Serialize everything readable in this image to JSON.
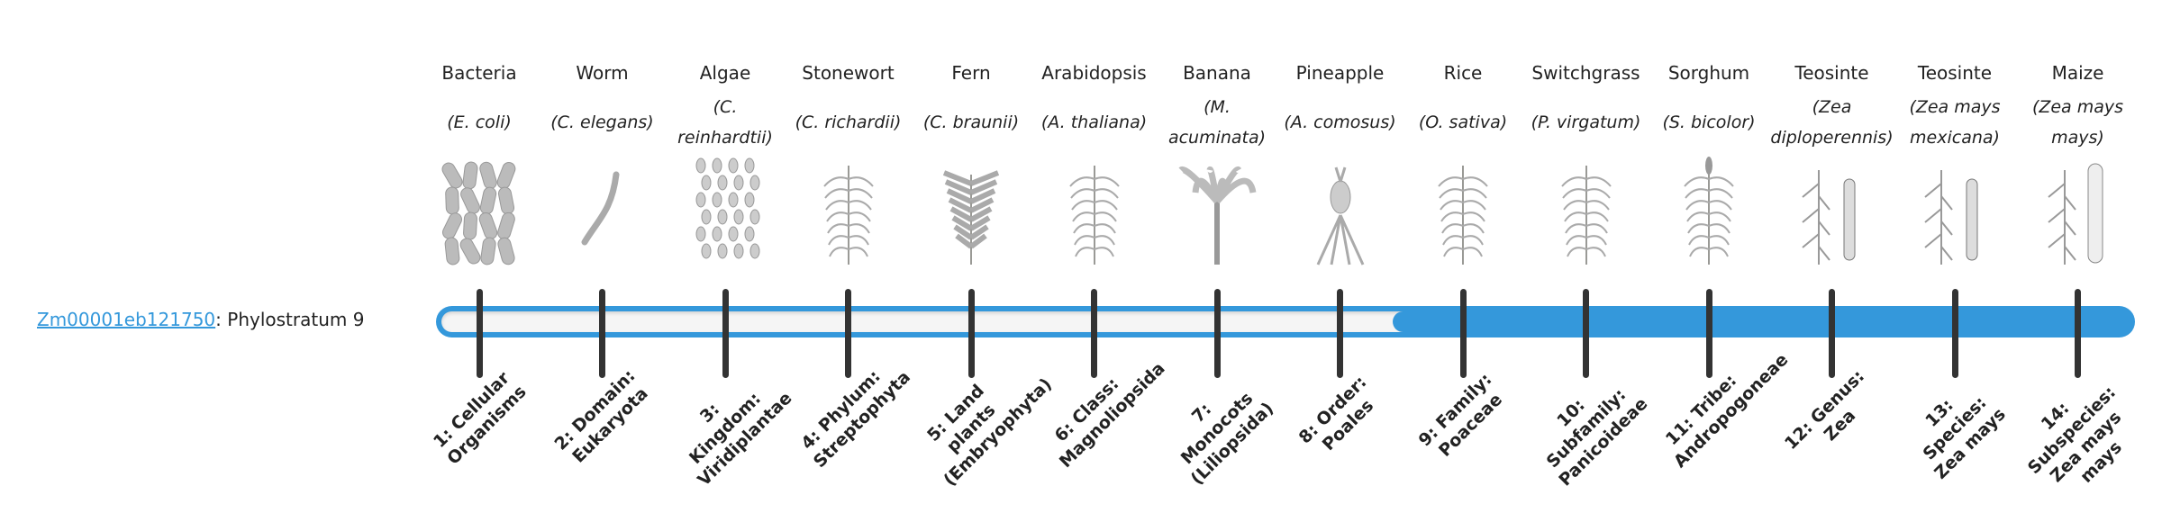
{
  "gene": {
    "id": "Zm00001eb121750",
    "suffix": ": Phylostratum 9"
  },
  "phylostratum": 9,
  "progress_color": "#3498db",
  "organisms": [
    {
      "name": "Bacteria",
      "species": "(E. coli)",
      "icon": "bacteria-icon"
    },
    {
      "name": "Worm",
      "species": "(C. elegans)",
      "icon": "worm-icon"
    },
    {
      "name": "Algae",
      "species": "(C. reinhardtii)",
      "icon": "algae-icon"
    },
    {
      "name": "Stonewort",
      "species": "(C. richardii)",
      "icon": "stonewort-icon"
    },
    {
      "name": "Fern",
      "species": "(C. braunii)",
      "icon": "fern-icon"
    },
    {
      "name": "Arabidopsis",
      "species": "(A. thaliana)",
      "icon": "arabidopsis-icon"
    },
    {
      "name": "Banana",
      "species": "(M. acuminata)",
      "icon": "banana-icon"
    },
    {
      "name": "Pineapple",
      "species": "(A. comosus)",
      "icon": "pineapple-icon"
    },
    {
      "name": "Rice",
      "species": "(O. sativa)",
      "icon": "rice-icon"
    },
    {
      "name": "Switchgrass",
      "species": "(P. virgatum)",
      "icon": "switchgrass-icon"
    },
    {
      "name": "Sorghum",
      "species": "(S. bicolor)",
      "icon": "sorghum-icon"
    },
    {
      "name": "Teosinte",
      "species": "(Zea diploperennis)",
      "icon": "teosinte-icon"
    },
    {
      "name": "Teosinte",
      "species": "(Zea mays mexicana)",
      "icon": "teosinte-icon"
    },
    {
      "name": "Maize",
      "species": "(Zea mays mays)",
      "icon": "maize-icon"
    }
  ],
  "strata": [
    "1: Cellular Organisms",
    "2: Domain: Eukaryota",
    "3: Kingdom: Viridiplantae",
    "4: Phylum: Streptophyta",
    "5: Land plants (Embryophyta)",
    "6: Class: Magnoliopsida",
    "7: Monocots (Liliopsida)",
    "8: Order: Poales",
    "9: Family: Poaceae",
    "10: Subfamily: Panicoideae",
    "11: Tribe: Andropogoneae",
    "12: Genus: Zea",
    "13: Species: Zea mays",
    "14: Subspecies: Zea mays mays"
  ]
}
